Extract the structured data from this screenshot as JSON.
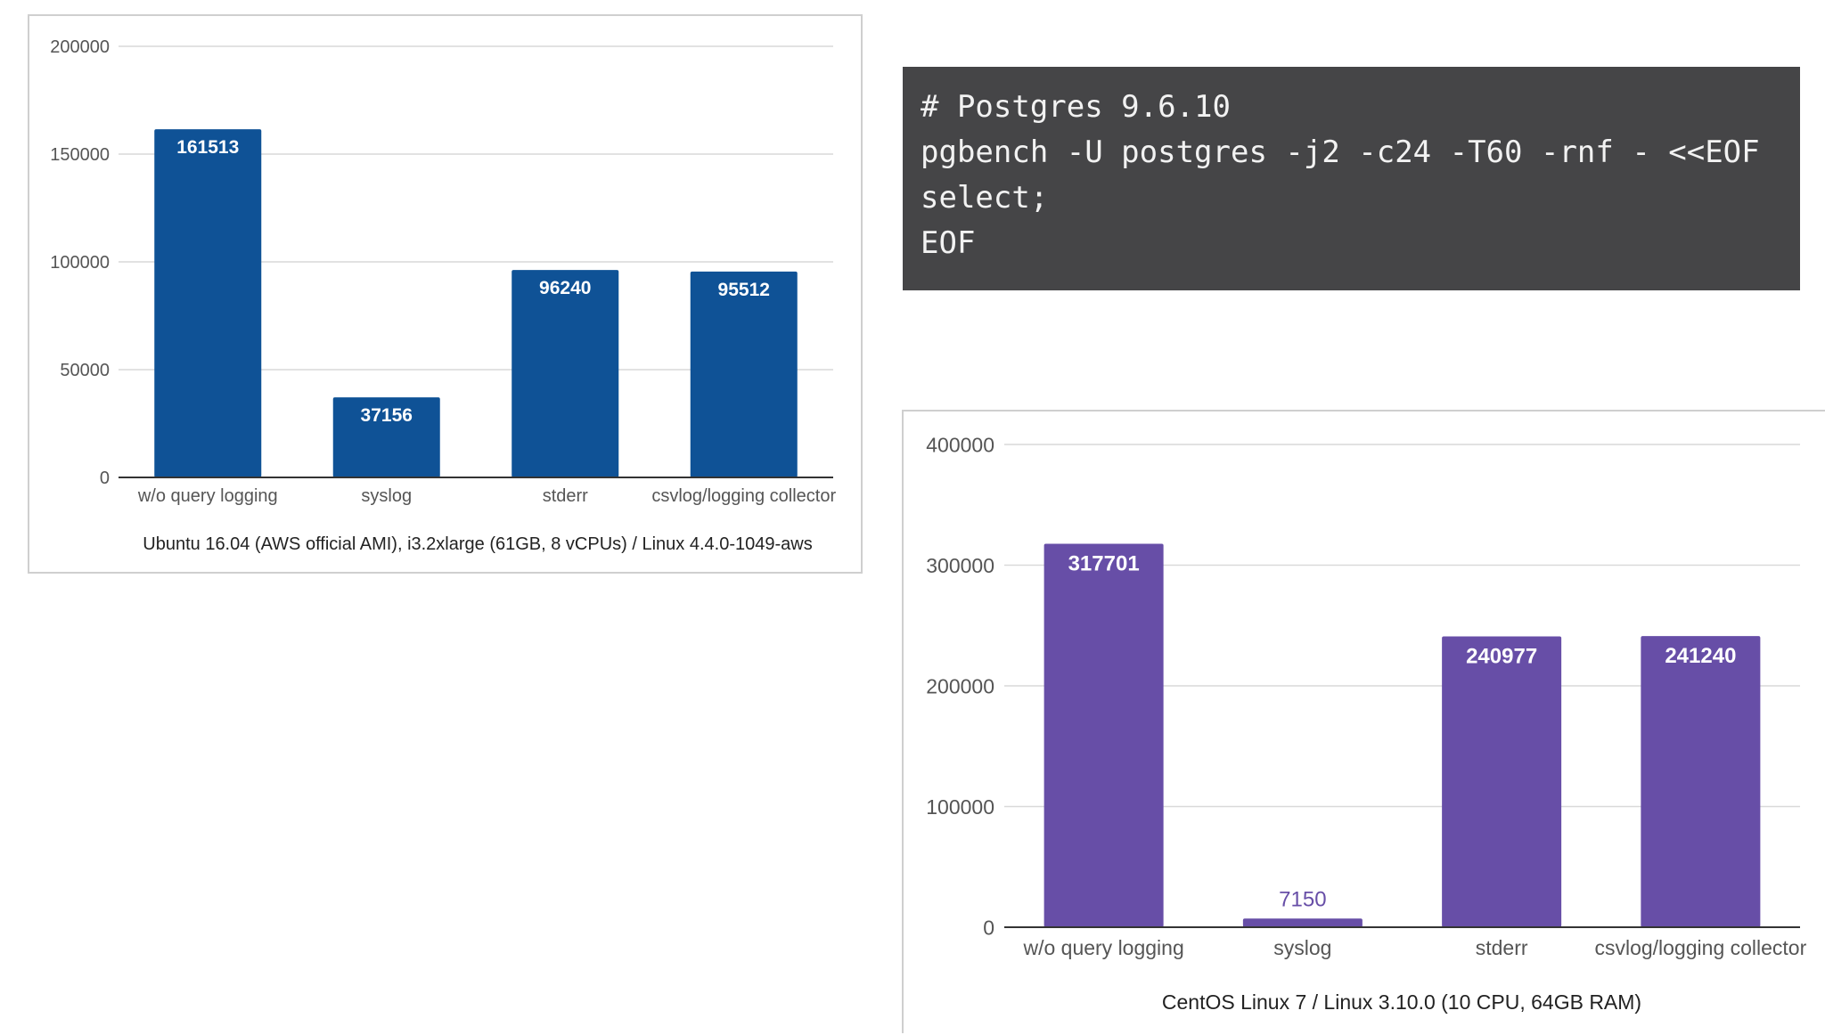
{
  "code": {
    "lines": [
      "# Postgres 9.6.10",
      "pgbench -U postgres -j2 -c24 -T60 -rnf - <<EOF",
      "select;",
      "EOF"
    ]
  },
  "chart_data": [
    {
      "type": "bar",
      "title": "",
      "xlabel": "Ubuntu 16.04 (AWS official AMI), i3.2xlarge (61GB, 8 vCPUs) / Linux 4.4.0-1049-aws",
      "ylabel": "",
      "categories": [
        "w/o query logging",
        "syslog",
        "stderr",
        "csvlog/logging collector"
      ],
      "values": [
        161513,
        37156,
        96240,
        95512
      ],
      "data_labels": [
        "161513",
        "37156",
        "96240",
        "95512"
      ],
      "ylim": [
        0,
        200000
      ],
      "yticks": [
        0,
        50000,
        100000,
        150000,
        200000
      ],
      "ytick_labels": [
        "0",
        "50000",
        "100000",
        "150000",
        "200000"
      ],
      "grid": true,
      "legend": "none",
      "bar_color": "#0f5296"
    },
    {
      "type": "bar",
      "title": "",
      "xlabel": "CentOS Linux 7 / Linux 3.10.0 (10 CPU, 64GB RAM)",
      "ylabel": "",
      "categories": [
        "w/o query logging",
        "syslog",
        "stderr",
        "csvlog/logging collector"
      ],
      "values": [
        317701,
        7150,
        240977,
        241240
      ],
      "data_labels": [
        "317701",
        "7150",
        "240977",
        "241240"
      ],
      "ylim": [
        0,
        400000
      ],
      "yticks": [
        0,
        100000,
        200000,
        300000,
        400000
      ],
      "ytick_labels": [
        "0",
        "100000",
        "200000",
        "300000",
        "400000"
      ],
      "grid": true,
      "legend": "none",
      "bar_color": "#674ea7"
    }
  ]
}
